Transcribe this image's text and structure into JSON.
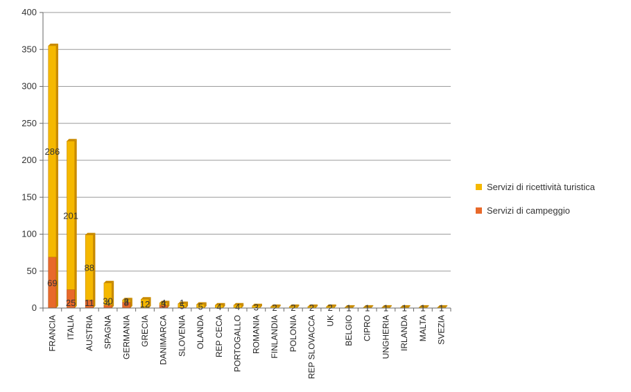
{
  "colors": {
    "ricettivita": "#F5B800",
    "ricettivita_edge": "#C88A00",
    "campeggio": "#E8692A",
    "campeggio_edge": "#B84A15",
    "grid": "#9a9a9a"
  },
  "legend": {
    "ricettivita": "Servizi di ricettività turistica",
    "campeggio": "Servizi di campeggio"
  },
  "chart_data": {
    "type": "bar",
    "stacked": true,
    "categories": [
      "FRANCIA",
      "ITALIA",
      "AUSTRIA",
      "SPAGNA",
      "GERMANIA",
      "GRECIA",
      "DANIMARCA",
      "SLOVENIA",
      "OLANDA",
      "REP CECA",
      "PORTOGALLO",
      "ROMANIA",
      "FINLANDIA",
      "POLONIA",
      "REP SLOVACCA",
      "UK",
      "BELGIO",
      "CIPRO",
      "UNGHERIA",
      "IRLANDA",
      "MALTA",
      "SVEZIA"
    ],
    "series": [
      {
        "name": "Servizi di campeggio",
        "values": [
          69,
          25,
          11,
          4,
          8,
          0,
          4,
          1,
          0,
          0,
          0,
          0,
          0,
          0,
          0,
          0,
          0,
          0,
          0,
          0,
          0,
          0
        ],
        "labels": [
          "69",
          "25",
          "11",
          "4",
          "8",
          "",
          "4",
          "1",
          "",
          "",
          "",
          "",
          "",
          "",
          "",
          "",
          "",
          "",
          "",
          "",
          "",
          ""
        ]
      },
      {
        "name": "Servizi di ricettività turistica",
        "values": [
          286,
          201,
          88,
          30,
          3,
          12,
          3,
          5,
          5,
          4,
          4,
          3,
          2,
          2,
          2,
          2,
          1,
          1,
          1,
          1,
          1,
          1
        ],
        "labels": [
          "286",
          "201",
          "88",
          "30",
          "3",
          "12",
          "3",
          "5",
          "5",
          "4",
          "4",
          "3",
          "2",
          "2",
          "2",
          "2",
          "1",
          "1",
          "1",
          "1",
          "1",
          "1"
        ]
      }
    ],
    "yticks": [
      "0",
      "50",
      "100",
      "150",
      "200",
      "250",
      "300",
      "350",
      "400"
    ],
    "ylim": [
      0,
      400
    ],
    "grid": true,
    "legend_position": "right"
  }
}
